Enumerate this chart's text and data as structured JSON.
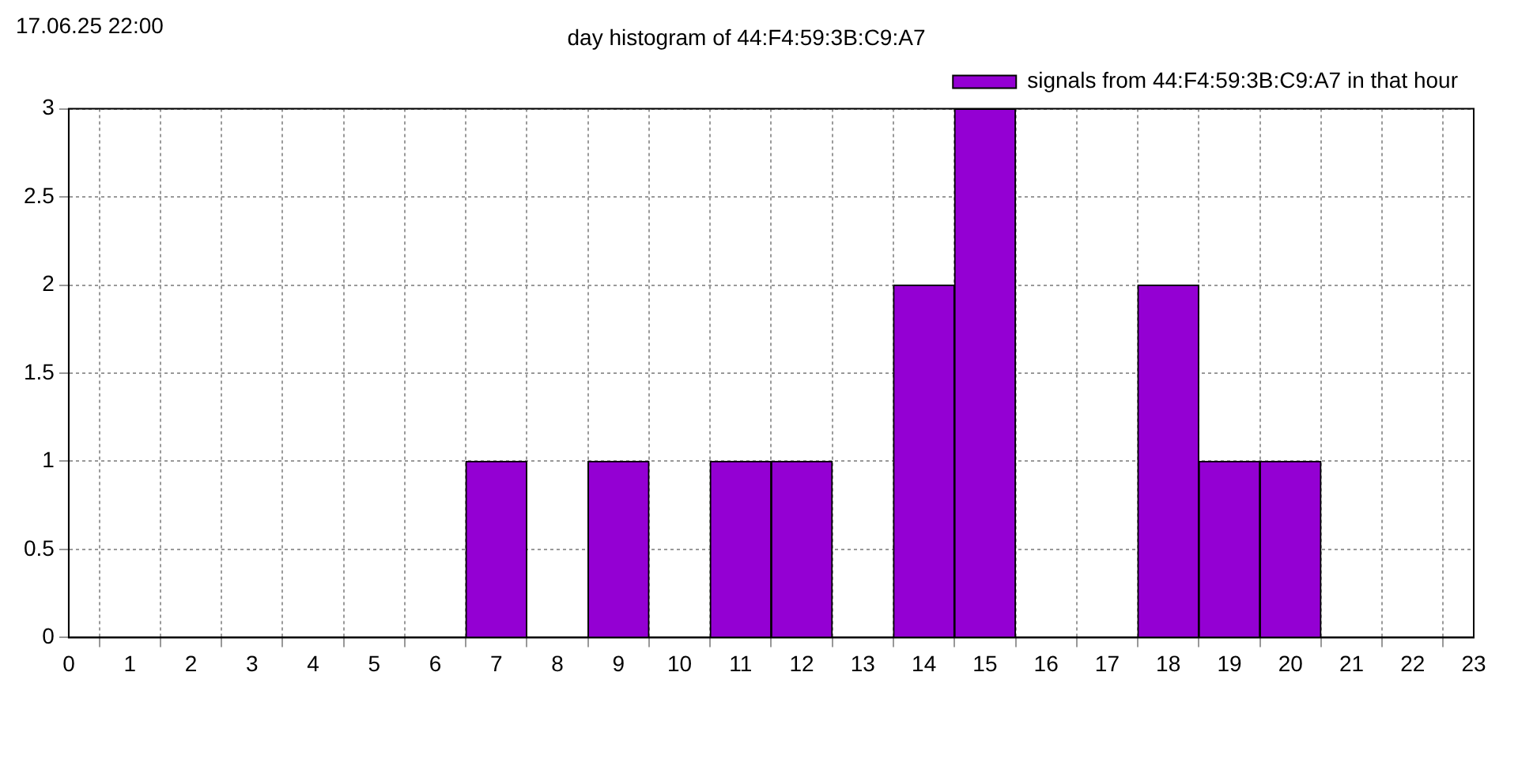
{
  "chart_data": {
    "type": "bar",
    "title": "day histogram of 44:F4:59:3B:C9:A7",
    "annotations": [
      "17.06.25 22:00"
    ],
    "x": [
      7,
      9,
      11,
      12,
      14,
      15,
      18,
      19,
      20
    ],
    "series": [
      {
        "name": "signals from 44:F4:59:3B:C9:A7 in that hour",
        "color": "#9400d3",
        "values": [
          1,
          1,
          1,
          1,
          2,
          3,
          2,
          1,
          1
        ]
      }
    ],
    "xlim": [
      0,
      23
    ],
    "xticks": [
      0,
      1,
      2,
      3,
      4,
      5,
      6,
      7,
      8,
      9,
      10,
      11,
      12,
      13,
      14,
      15,
      16,
      17,
      18,
      19,
      20,
      21,
      22,
      23
    ],
    "ylim": [
      0,
      3
    ],
    "yticks": [
      0,
      0.5,
      1,
      1.5,
      2,
      2.5,
      3
    ],
    "grid": true,
    "legend": "top right"
  }
}
